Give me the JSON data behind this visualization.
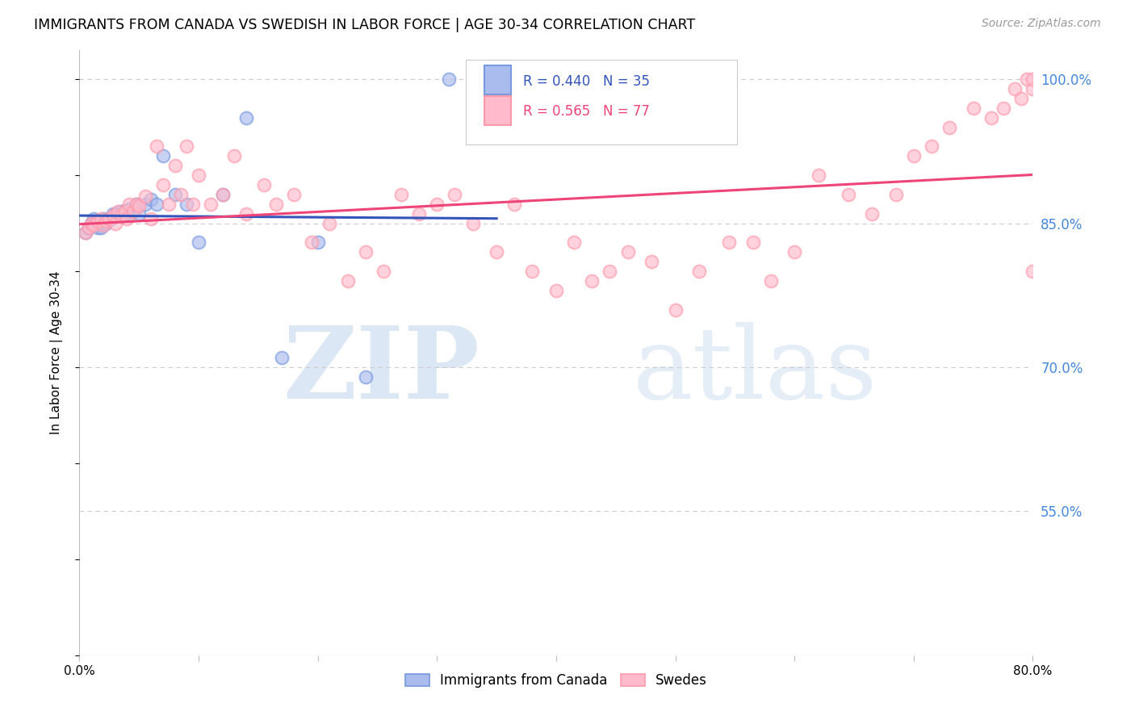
{
  "title": "IMMIGRANTS FROM CANADA VS SWEDISH IN LABOR FORCE | AGE 30-34 CORRELATION CHART",
  "source": "Source: ZipAtlas.com",
  "ylabel": "In Labor Force | Age 30-34",
  "xlim": [
    0.0,
    0.8
  ],
  "ylim": [
    0.4,
    1.03
  ],
  "yticks": [
    0.55,
    0.7,
    0.85,
    1.0
  ],
  "ytick_labels": [
    "55.0%",
    "70.0%",
    "85.0%",
    "100.0%"
  ],
  "xticks": [
    0.0,
    0.1,
    0.2,
    0.3,
    0.4,
    0.5,
    0.6,
    0.7,
    0.8
  ],
  "xtick_labels": [
    "0.0%",
    "",
    "",
    "",
    "",
    "",
    "",
    "",
    "80.0%"
  ],
  "legend_labels_bottom": [
    "Immigrants from Canada",
    "Swedes"
  ],
  "blue_color": "#7799dd",
  "pink_color": "#ff99aa",
  "blue_line_color": "#3355bb",
  "pink_line_color": "#ee4477",
  "background_color": "#ffffff",
  "grid_color": "#cccccc",
  "blue_scatter_x": [
    0.005,
    0.008,
    0.01,
    0.012,
    0.015,
    0.016,
    0.018,
    0.02,
    0.022,
    0.025,
    0.027,
    0.028,
    0.03,
    0.032,
    0.034,
    0.036,
    0.038,
    0.04,
    0.042,
    0.045,
    0.048,
    0.05,
    0.055,
    0.06,
    0.065,
    0.07,
    0.08,
    0.09,
    0.1,
    0.12,
    0.14,
    0.17,
    0.2,
    0.24,
    0.31
  ],
  "blue_scatter_y": [
    0.84,
    0.845,
    0.85,
    0.855,
    0.845,
    0.85,
    0.845,
    0.855,
    0.85,
    0.855,
    0.855,
    0.86,
    0.86,
    0.858,
    0.862,
    0.858,
    0.863,
    0.86,
    0.865,
    0.862,
    0.87,
    0.86,
    0.87,
    0.875,
    0.87,
    0.92,
    0.88,
    0.87,
    0.83,
    0.88,
    0.96,
    0.71,
    0.83,
    0.69,
    1.0
  ],
  "pink_scatter_x": [
    0.005,
    0.008,
    0.01,
    0.012,
    0.015,
    0.018,
    0.02,
    0.022,
    0.025,
    0.028,
    0.03,
    0.032,
    0.035,
    0.038,
    0.04,
    0.042,
    0.045,
    0.048,
    0.05,
    0.055,
    0.06,
    0.065,
    0.07,
    0.075,
    0.08,
    0.085,
    0.09,
    0.095,
    0.1,
    0.11,
    0.12,
    0.13,
    0.14,
    0.155,
    0.165,
    0.18,
    0.195,
    0.21,
    0.225,
    0.24,
    0.255,
    0.27,
    0.285,
    0.3,
    0.315,
    0.33,
    0.35,
    0.365,
    0.38,
    0.4,
    0.415,
    0.43,
    0.445,
    0.46,
    0.48,
    0.5,
    0.52,
    0.545,
    0.565,
    0.58,
    0.6,
    0.62,
    0.645,
    0.665,
    0.685,
    0.7,
    0.715,
    0.73,
    0.75,
    0.765,
    0.775,
    0.785,
    0.79,
    0.795,
    0.8,
    0.8,
    0.8
  ],
  "pink_scatter_y": [
    0.84,
    0.845,
    0.85,
    0.848,
    0.852,
    0.855,
    0.848,
    0.852,
    0.855,
    0.858,
    0.85,
    0.862,
    0.858,
    0.862,
    0.855,
    0.87,
    0.862,
    0.87,
    0.868,
    0.878,
    0.855,
    0.93,
    0.89,
    0.87,
    0.91,
    0.88,
    0.93,
    0.87,
    0.9,
    0.87,
    0.88,
    0.92,
    0.86,
    0.89,
    0.87,
    0.88,
    0.83,
    0.85,
    0.79,
    0.82,
    0.8,
    0.88,
    0.86,
    0.87,
    0.88,
    0.85,
    0.82,
    0.87,
    0.8,
    0.78,
    0.83,
    0.79,
    0.8,
    0.82,
    0.81,
    0.76,
    0.8,
    0.83,
    0.83,
    0.79,
    0.82,
    0.9,
    0.88,
    0.86,
    0.88,
    0.92,
    0.93,
    0.95,
    0.97,
    0.96,
    0.97,
    0.99,
    0.98,
    1.0,
    0.99,
    1.0,
    0.8
  ],
  "blue_line_start_x": 0.0,
  "blue_line_end_x": 0.35,
  "pink_line_start_x": 0.0,
  "pink_line_end_x": 0.8
}
